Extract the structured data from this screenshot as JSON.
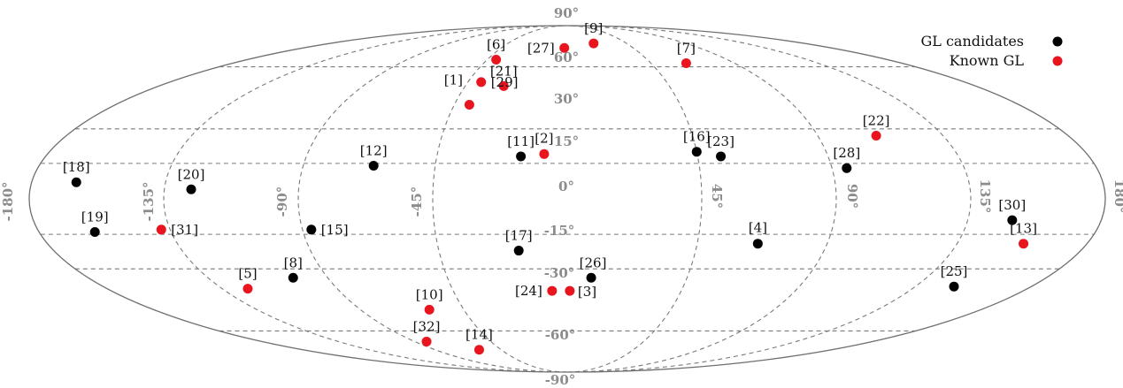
{
  "chart_data": {
    "type": "scatter",
    "projection": "mollweide",
    "xlim": [
      -180,
      180
    ],
    "ylim": [
      -90,
      90
    ],
    "grid": true,
    "legend_position": "top-right",
    "lon_ticks": [
      {
        "value": -180,
        "label": "-180°"
      },
      {
        "value": -135,
        "label": "-135°"
      },
      {
        "value": -90,
        "label": "-90°"
      },
      {
        "value": -45,
        "label": "-45°"
      },
      {
        "value": 45,
        "label": "45°"
      },
      {
        "value": 90,
        "label": "90°"
      },
      {
        "value": 135,
        "label": "135°"
      },
      {
        "value": 180,
        "label": "180°"
      }
    ],
    "lat_ticks": [
      {
        "value": 90,
        "label": "90°"
      },
      {
        "value": 60,
        "label": "60°"
      },
      {
        "value": 30,
        "label": "30°"
      },
      {
        "value": 15,
        "label": "15°"
      },
      {
        "value": 0,
        "label": "0°"
      },
      {
        "value": -15,
        "label": "-15°"
      },
      {
        "value": -30,
        "label": "-30°"
      },
      {
        "value": -60,
        "label": "-60°"
      },
      {
        "value": -90,
        "label": "-90°"
      }
    ],
    "series": [
      {
        "name": "GL candidates",
        "color": "#000000",
        "points": [
          {
            "label": "[4]",
            "lon": 66,
            "lat": -19
          },
          {
            "label": "[8]",
            "lon": -103,
            "lat": -34
          },
          {
            "label": "[11]",
            "lon": -16,
            "lat": 18
          },
          {
            "label": "[12]",
            "lon": -66,
            "lat": 14
          },
          {
            "label": "[15]",
            "lon": -87,
            "lat": -13
          },
          {
            "label": "[16]",
            "lon": 45,
            "lat": 20
          },
          {
            "label": "[17]",
            "lon": -17,
            "lat": -22
          },
          {
            "label": "[18]",
            "lon": -165,
            "lat": 7
          },
          {
            "label": "[19]",
            "lon": -161,
            "lat": -14
          },
          {
            "label": "[20]",
            "lon": -126,
            "lat": 4
          },
          {
            "label": "[23]",
            "lon": 53,
            "lat": 18
          },
          {
            "label": "[25]",
            "lon": 150,
            "lat": -38
          },
          {
            "label": "[26]",
            "lon": 9,
            "lat": -34
          },
          {
            "label": "[28]",
            "lon": 95,
            "lat": 13
          },
          {
            "label": "[30]",
            "lon": 150,
            "lat": -9
          }
        ]
      },
      {
        "name": "Known GL",
        "color": "#e8141e",
        "points": [
          {
            "label": "[1]",
            "lon": -39,
            "lat": 41
          },
          {
            "label": "[2]",
            "lon": -8,
            "lat": 19
          },
          {
            "label": "[3]",
            "lon": 1,
            "lat": -40
          },
          {
            "label": "[5]",
            "lon": -125,
            "lat": -39
          },
          {
            "label": "[6]",
            "lon": -40,
            "lat": 64
          },
          {
            "label": "[7]",
            "lon": 64,
            "lat": 62
          },
          {
            "label": "[9]",
            "lon": 20,
            "lat": 74
          },
          {
            "label": "[10]",
            "lon": -60,
            "lat": -49
          },
          {
            "label": "[13]",
            "lon": 158,
            "lat": -19
          },
          {
            "label": "[14]",
            "lon": -60,
            "lat": -71
          },
          {
            "label": "[21]",
            "lon": -28,
            "lat": 50
          },
          {
            "label": "[22]",
            "lon": 111,
            "lat": 27
          },
          {
            "label": "[24]",
            "lon": -6,
            "lat": -40
          },
          {
            "label": "[27]",
            "lon": -2,
            "lat": 71
          },
          {
            "label": "[29]",
            "lon": -39,
            "lat": 52
          },
          {
            "label": "[31]",
            "lon": -138,
            "lat": -13
          },
          {
            "label": "[32]",
            "lon": -83,
            "lat": -66
          }
        ]
      }
    ]
  }
}
